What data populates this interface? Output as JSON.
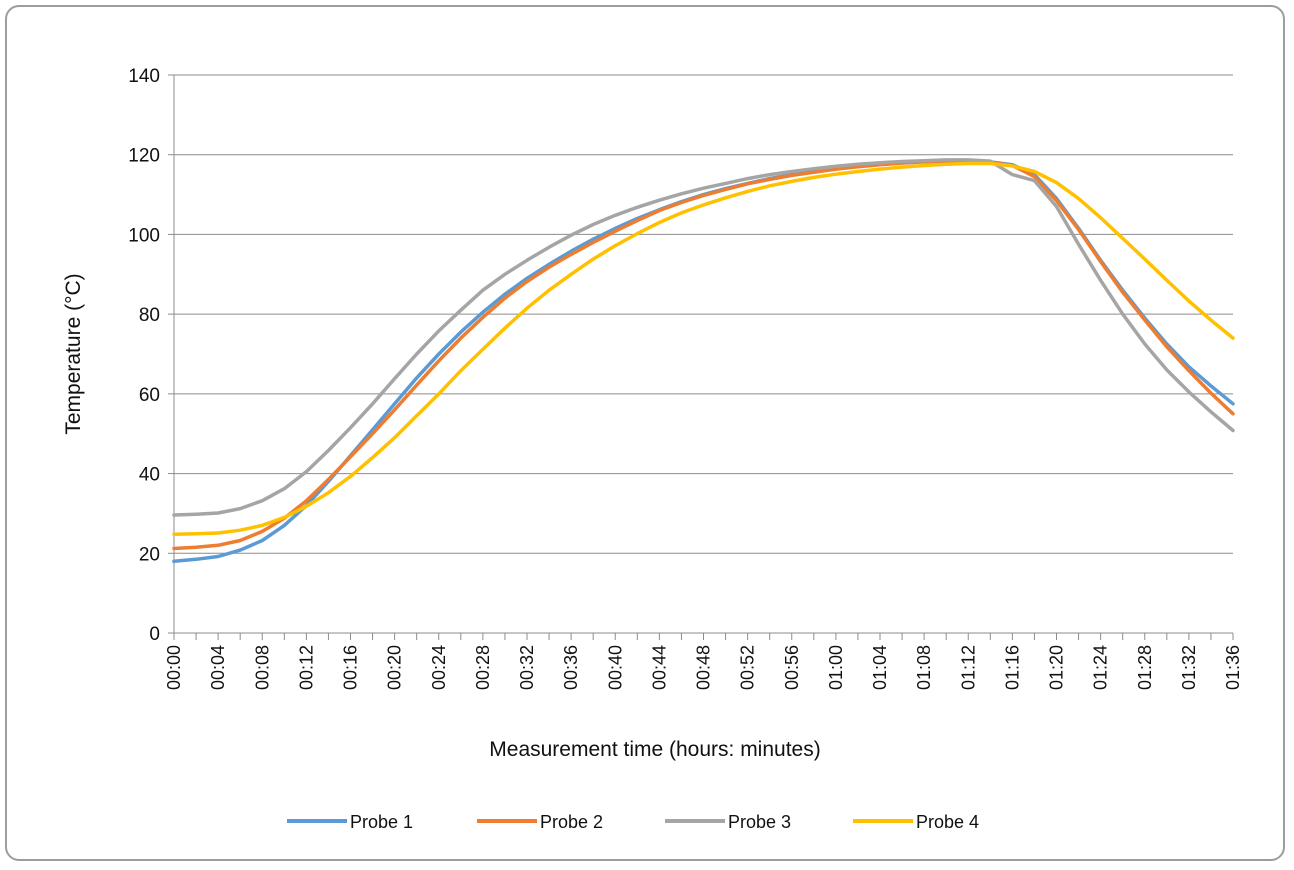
{
  "chart_data": {
    "type": "line",
    "xlabel": "Measurement time (hours: minutes)",
    "ylabel": "Temperature (°C)",
    "ylim": [
      0,
      140
    ],
    "y_ticks": [
      0,
      20,
      40,
      60,
      80,
      100,
      120,
      140
    ],
    "x_tick_labels": [
      "00:00",
      "00:04",
      "00:08",
      "00:12",
      "00:16",
      "00:20",
      "00:24",
      "00:28",
      "00:32",
      "00:36",
      "00:40",
      "00:44",
      "00:48",
      "00:52",
      "00:56",
      "01:00",
      "01:04",
      "01:08",
      "01:12",
      "01:16",
      "01:20",
      "01:24",
      "01:28",
      "01:32",
      "01:36"
    ],
    "x": [
      "00:00",
      "00:02",
      "00:04",
      "00:06",
      "00:08",
      "00:10",
      "00:12",
      "00:14",
      "00:16",
      "00:18",
      "00:20",
      "00:22",
      "00:24",
      "00:26",
      "00:28",
      "00:30",
      "00:32",
      "00:34",
      "00:36",
      "00:38",
      "00:40",
      "00:42",
      "00:44",
      "00:46",
      "00:48",
      "00:50",
      "00:52",
      "00:54",
      "00:56",
      "00:58",
      "01:00",
      "01:02",
      "01:04",
      "01:06",
      "01:08",
      "01:10",
      "01:12",
      "01:14",
      "01:16",
      "01:18",
      "01:20",
      "01:22",
      "01:24",
      "01:26",
      "01:28",
      "01:30",
      "01:32",
      "01:34",
      "01:36"
    ],
    "grid": "horizontal",
    "legend_position": "bottom",
    "series": [
      {
        "name": "Probe 1",
        "color": "#5b9bd5",
        "values": [
          18,
          18.5,
          19.2,
          20.8,
          23.2,
          27,
          32,
          38,
          44.5,
          51,
          57.5,
          64,
          70,
          75.5,
          80.5,
          85,
          89,
          92.5,
          95.8,
          98.8,
          101.5,
          104,
          106.2,
          108.2,
          110,
          111.5,
          112.8,
          114,
          115,
          115.8,
          116.5,
          117.1,
          117.6,
          118,
          118.3,
          118.5,
          118.5,
          118.2,
          117.5,
          115,
          109,
          101.5,
          93.5,
          86,
          79,
          72.5,
          66.8,
          62,
          57.5
        ]
      },
      {
        "name": "Probe 2",
        "color": "#ed7d31",
        "values": [
          21.2,
          21.5,
          22,
          23.2,
          25.5,
          28.8,
          33.2,
          38.5,
          44.2,
          50,
          56,
          62.2,
          68.3,
          74,
          79.2,
          84,
          88.2,
          91.8,
          95,
          98,
          100.8,
          103.5,
          106,
          108,
          109.8,
          111.3,
          112.7,
          113.8,
          114.8,
          115.6,
          116.4,
          117,
          117.5,
          117.9,
          118.2,
          118.4,
          118.4,
          118.1,
          117.3,
          114.5,
          108.5,
          101.2,
          93.2,
          85.5,
          78.5,
          71.8,
          65.8,
          60.2,
          55
        ]
      },
      {
        "name": "Probe 3",
        "color": "#a5a5a5",
        "values": [
          29.6,
          29.8,
          30.1,
          31.2,
          33.2,
          36.2,
          40.5,
          45.8,
          51.5,
          57.5,
          63.8,
          70,
          75.8,
          81,
          86,
          90,
          93.5,
          96.8,
          99.8,
          102.5,
          104.8,
          106.8,
          108.6,
          110.2,
          111.6,
          112.8,
          114,
          115,
          115.8,
          116.5,
          117.1,
          117.6,
          118,
          118.3,
          118.5,
          118.7,
          118.7,
          118.4,
          115,
          113.5,
          107,
          97.5,
          88.5,
          80,
          72.5,
          66,
          60.5,
          55.5,
          50.8
        ]
      },
      {
        "name": "Probe 4",
        "color": "#ffc000",
        "values": [
          24.8,
          24.9,
          25.1,
          25.8,
          27,
          29,
          31.8,
          35.2,
          39.3,
          44,
          49,
          54.5,
          60,
          65.8,
          71.2,
          76.5,
          81.5,
          86,
          90,
          93.8,
          97.2,
          100.2,
          103,
          105.4,
          107.4,
          109.2,
          110.8,
          112.2,
          113.3,
          114.3,
          115.1,
          115.8,
          116.4,
          116.9,
          117.3,
          117.6,
          117.8,
          117.8,
          117.2,
          115.8,
          113,
          109,
          104.2,
          99,
          93.8,
          88.5,
          83.3,
          78.5,
          74
        ]
      }
    ]
  }
}
